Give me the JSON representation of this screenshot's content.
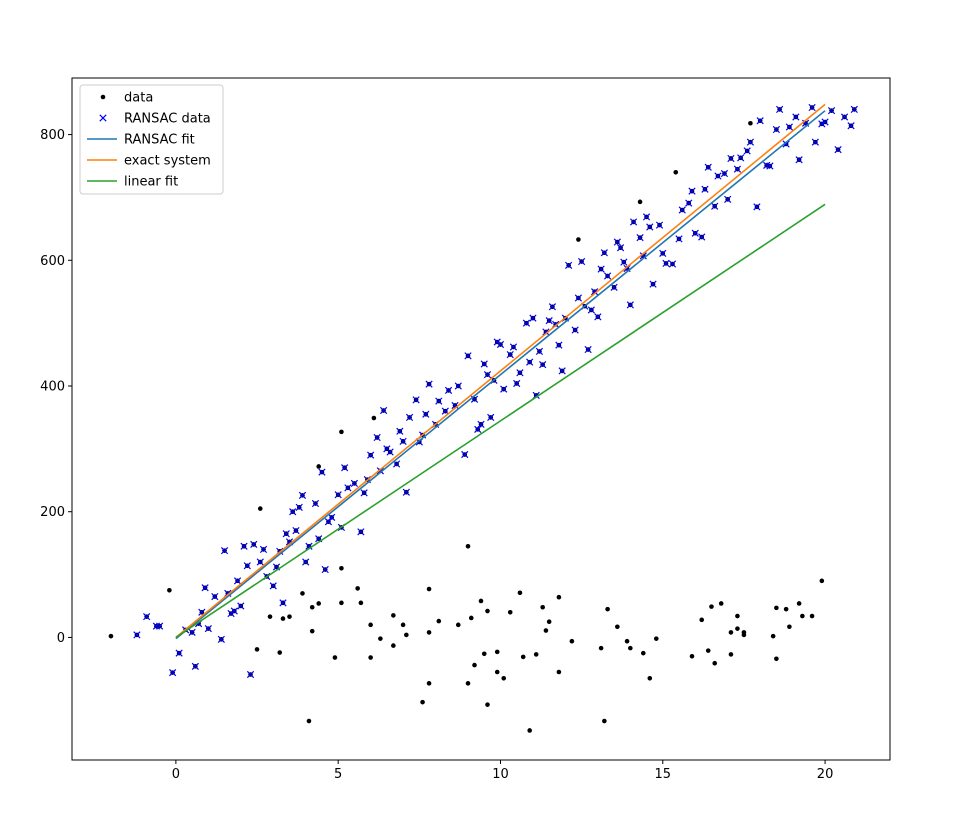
{
  "chart_data": {
    "type": "scatter",
    "title": "",
    "xlabel": "",
    "ylabel": "",
    "xlim": [
      -3.2,
      22.0
    ],
    "ylim": [
      -195,
      890
    ],
    "xticks": [
      0,
      5,
      10,
      15,
      20
    ],
    "yticks": [
      0,
      200,
      400,
      600,
      800
    ],
    "xtick_labels": [
      "0",
      "5",
      "10",
      "15",
      "20"
    ],
    "ytick_labels": [
      "0",
      "200",
      "400",
      "600",
      "800"
    ],
    "grid": false,
    "legend_position": "top-left",
    "colors": {
      "data": "#000000",
      "ransac_data": "#0000ff",
      "ransac_fit": "#1f77b4",
      "exact_system": "#ff7f0e",
      "linear_fit": "#2ca02c"
    },
    "legend": [
      {
        "key": "data",
        "label": "data",
        "marker": "dot"
      },
      {
        "key": "ransac_data",
        "label": "RANSAC data",
        "marker": "x"
      },
      {
        "key": "ransac_fit",
        "label": "RANSAC fit",
        "marker": "line"
      },
      {
        "key": "exact_system",
        "label": "exact system",
        "marker": "line"
      },
      {
        "key": "linear_fit",
        "label": "linear fit",
        "marker": "line"
      }
    ],
    "series": [
      {
        "key": "ransac_fit",
        "type": "line",
        "x": [
          0,
          20
        ],
        "y": [
          -2,
          838
        ]
      },
      {
        "key": "exact_system",
        "type": "line",
        "x": [
          0,
          20
        ],
        "y": [
          0,
          848
        ]
      },
      {
        "key": "linear_fit",
        "type": "line",
        "x": [
          0,
          20
        ],
        "y": [
          0,
          689
        ]
      },
      {
        "key": "outliers",
        "type": "scatter",
        "marker": "dot",
        "points": [
          [
            -2.0,
            2
          ],
          [
            -0.2,
            75
          ],
          [
            2.6,
            205
          ],
          [
            4.4,
            272
          ],
          [
            5.1,
            327
          ],
          [
            6.1,
            349
          ],
          [
            12.4,
            633
          ],
          [
            14.3,
            693
          ],
          [
            15.4,
            740
          ],
          [
            17.7,
            818
          ],
          [
            9.0,
            145
          ],
          [
            5.1,
            110
          ],
          [
            5.6,
            78
          ],
          [
            7.8,
            77
          ],
          [
            2.9,
            33
          ],
          [
            3.3,
            30
          ],
          [
            3.5,
            33
          ],
          [
            4.2,
            48
          ],
          [
            4.4,
            54
          ],
          [
            4.9,
            -32
          ],
          [
            5.1,
            55
          ],
          [
            5.7,
            55
          ],
          [
            6.0,
            20
          ],
          [
            6.0,
            -32
          ],
          [
            6.3,
            -2
          ],
          [
            6.7,
            35
          ],
          [
            6.7,
            -13
          ],
          [
            7.0,
            20
          ],
          [
            7.1,
            4
          ],
          [
            7.8,
            8
          ],
          [
            8.1,
            26
          ],
          [
            8.7,
            20
          ],
          [
            9.0,
            -73
          ],
          [
            9.1,
            31
          ],
          [
            9.2,
            -44
          ],
          [
            9.4,
            58
          ],
          [
            9.5,
            -26
          ],
          [
            9.6,
            -107
          ],
          [
            9.6,
            42
          ],
          [
            9.9,
            -23
          ],
          [
            9.9,
            -55
          ],
          [
            10.1,
            -65
          ],
          [
            10.3,
            40
          ],
          [
            10.6,
            71
          ],
          [
            10.7,
            -31
          ],
          [
            10.9,
            -148
          ],
          [
            11.1,
            -27
          ],
          [
            11.3,
            48
          ],
          [
            11.4,
            11
          ],
          [
            11.5,
            25
          ],
          [
            11.8,
            64
          ],
          [
            11.8,
            -55
          ],
          [
            12.2,
            -6
          ],
          [
            13.1,
            -17
          ],
          [
            13.2,
            -133
          ],
          [
            13.3,
            45
          ],
          [
            13.6,
            17
          ],
          [
            13.9,
            -6
          ],
          [
            14.0,
            -17
          ],
          [
            14.4,
            -25
          ],
          [
            14.6,
            -65
          ],
          [
            14.8,
            -2
          ],
          [
            15.9,
            -30
          ],
          [
            16.2,
            28
          ],
          [
            16.4,
            -21
          ],
          [
            16.5,
            49
          ],
          [
            16.6,
            -41
          ],
          [
            16.8,
            54
          ],
          [
            17.1,
            -27
          ],
          [
            17.1,
            8
          ],
          [
            17.3,
            14
          ],
          [
            17.3,
            34
          ],
          [
            17.5,
            4
          ],
          [
            17.5,
            8
          ],
          [
            18.4,
            2
          ],
          [
            18.5,
            -34
          ],
          [
            18.5,
            47
          ],
          [
            18.8,
            45
          ],
          [
            18.9,
            17
          ],
          [
            19.2,
            54
          ],
          [
            19.3,
            34
          ],
          [
            19.6,
            34
          ],
          [
            19.9,
            90
          ],
          [
            4.1,
            -133
          ],
          [
            7.6,
            -103
          ],
          [
            7.8,
            -73
          ],
          [
            3.2,
            -24
          ],
          [
            2.5,
            -19
          ],
          [
            4.2,
            10
          ],
          [
            3.9,
            70
          ]
        ]
      },
      {
        "key": "inliers",
        "type": "scatter",
        "marker": "x",
        "points": [
          [
            -1.2,
            4
          ],
          [
            -0.9,
            33
          ],
          [
            -0.6,
            18
          ],
          [
            -0.5,
            18
          ],
          [
            -0.1,
            -56
          ],
          [
            0.1,
            -25
          ],
          [
            0.5,
            8
          ],
          [
            0.6,
            -46
          ],
          [
            0.8,
            40
          ],
          [
            0.9,
            79
          ],
          [
            1.0,
            14
          ],
          [
            1.5,
            138
          ],
          [
            1.6,
            70
          ],
          [
            1.8,
            42
          ],
          [
            1.9,
            90
          ],
          [
            2.1,
            145
          ],
          [
            2.3,
            -59
          ],
          [
            2.4,
            148
          ],
          [
            2.6,
            120
          ],
          [
            2.8,
            97
          ],
          [
            3.1,
            112
          ],
          [
            3.2,
            137
          ],
          [
            3.5,
            152
          ],
          [
            3.6,
            200
          ],
          [
            3.8,
            207
          ],
          [
            3.9,
            226
          ],
          [
            4.0,
            120
          ],
          [
            4.3,
            213
          ],
          [
            4.5,
            263
          ],
          [
            4.7,
            184
          ],
          [
            5.0,
            227
          ],
          [
            5.2,
            270
          ],
          [
            5.5,
            245
          ],
          [
            5.8,
            230
          ],
          [
            6.0,
            290
          ],
          [
            6.2,
            318
          ],
          [
            6.4,
            361
          ],
          [
            6.6,
            295
          ],
          [
            6.9,
            328
          ],
          [
            7.1,
            231
          ],
          [
            7.4,
            378
          ],
          [
            7.6,
            322
          ],
          [
            7.8,
            403
          ],
          [
            8.1,
            376
          ],
          [
            8.4,
            393
          ],
          [
            8.6,
            369
          ],
          [
            8.9,
            291
          ],
          [
            9.0,
            448
          ],
          [
            9.3,
            331
          ],
          [
            9.4,
            339
          ],
          [
            9.6,
            418
          ],
          [
            9.8,
            409
          ],
          [
            10.0,
            466
          ],
          [
            10.3,
            450
          ],
          [
            10.5,
            404
          ],
          [
            10.8,
            500
          ],
          [
            11.0,
            508
          ],
          [
            11.2,
            455
          ],
          [
            11.4,
            486
          ],
          [
            11.6,
            526
          ],
          [
            11.8,
            465
          ],
          [
            12.0,
            508
          ],
          [
            12.3,
            489
          ],
          [
            12.5,
            598
          ],
          [
            12.7,
            458
          ],
          [
            12.9,
            550
          ],
          [
            13.1,
            586
          ],
          [
            13.3,
            575
          ],
          [
            13.6,
            629
          ],
          [
            13.8,
            597
          ],
          [
            14.0,
            529
          ],
          [
            14.3,
            636
          ],
          [
            14.5,
            669
          ],
          [
            14.7,
            562
          ],
          [
            15.0,
            611
          ],
          [
            15.3,
            594
          ],
          [
            15.6,
            680
          ],
          [
            15.9,
            710
          ],
          [
            16.2,
            637
          ],
          [
            16.4,
            748
          ],
          [
            16.6,
            686
          ],
          [
            16.9,
            738
          ],
          [
            17.1,
            762
          ],
          [
            17.4,
            763
          ],
          [
            17.7,
            788
          ],
          [
            18.0,
            822
          ],
          [
            18.3,
            750
          ],
          [
            18.6,
            840
          ],
          [
            18.9,
            812
          ],
          [
            19.2,
            760
          ],
          [
            19.6,
            843
          ],
          [
            19.9,
            817
          ],
          [
            20.2,
            838
          ],
          [
            20.6,
            828
          ],
          [
            20.8,
            814
          ],
          [
            20.9,
            840
          ],
          [
            20.4,
            776
          ],
          [
            0.3,
            12
          ],
          [
            0.7,
            22
          ],
          [
            1.2,
            65
          ],
          [
            1.4,
            -3
          ],
          [
            2.0,
            50
          ],
          [
            2.2,
            114
          ],
          [
            2.7,
            140
          ],
          [
            3.0,
            82
          ],
          [
            3.3,
            55
          ],
          [
            3.4,
            165
          ],
          [
            3.7,
            170
          ],
          [
            4.1,
            145
          ],
          [
            4.4,
            157
          ],
          [
            4.6,
            108
          ],
          [
            4.8,
            191
          ],
          [
            5.1,
            175
          ],
          [
            5.3,
            238
          ],
          [
            5.7,
            168
          ],
          [
            5.9,
            251
          ],
          [
            6.3,
            265
          ],
          [
            6.5,
            300
          ],
          [
            6.8,
            276
          ],
          [
            7.0,
            312
          ],
          [
            7.2,
            350
          ],
          [
            7.5,
            311
          ],
          [
            7.7,
            355
          ],
          [
            8.0,
            339
          ],
          [
            8.3,
            360
          ],
          [
            8.7,
            400
          ],
          [
            9.2,
            379
          ],
          [
            9.5,
            435
          ],
          [
            9.7,
            350
          ],
          [
            9.9,
            470
          ],
          [
            10.1,
            395
          ],
          [
            10.4,
            462
          ],
          [
            10.6,
            421
          ],
          [
            10.9,
            438
          ],
          [
            11.1,
            385
          ],
          [
            11.3,
            434
          ],
          [
            11.5,
            504
          ],
          [
            11.7,
            498
          ],
          [
            11.9,
            424
          ],
          [
            12.1,
            592
          ],
          [
            12.4,
            540
          ],
          [
            12.6,
            527
          ],
          [
            12.8,
            521
          ],
          [
            13.0,
            510
          ],
          [
            13.2,
            612
          ],
          [
            13.5,
            557
          ],
          [
            13.7,
            620
          ],
          [
            13.9,
            587
          ],
          [
            14.1,
            661
          ],
          [
            14.4,
            607
          ],
          [
            14.6,
            653
          ],
          [
            14.9,
            656
          ],
          [
            15.1,
            595
          ],
          [
            15.5,
            634
          ],
          [
            15.8,
            691
          ],
          [
            16.0,
            643
          ],
          [
            16.3,
            713
          ],
          [
            16.7,
            734
          ],
          [
            17.0,
            697
          ],
          [
            17.3,
            745
          ],
          [
            17.6,
            774
          ],
          [
            17.9,
            685
          ],
          [
            18.2,
            751
          ],
          [
            18.5,
            808
          ],
          [
            18.8,
            785
          ],
          [
            19.1,
            828
          ],
          [
            19.4,
            818
          ],
          [
            19.7,
            788
          ],
          [
            20.0,
            820
          ],
          [
            1.7,
            38
          ]
        ]
      }
    ]
  }
}
